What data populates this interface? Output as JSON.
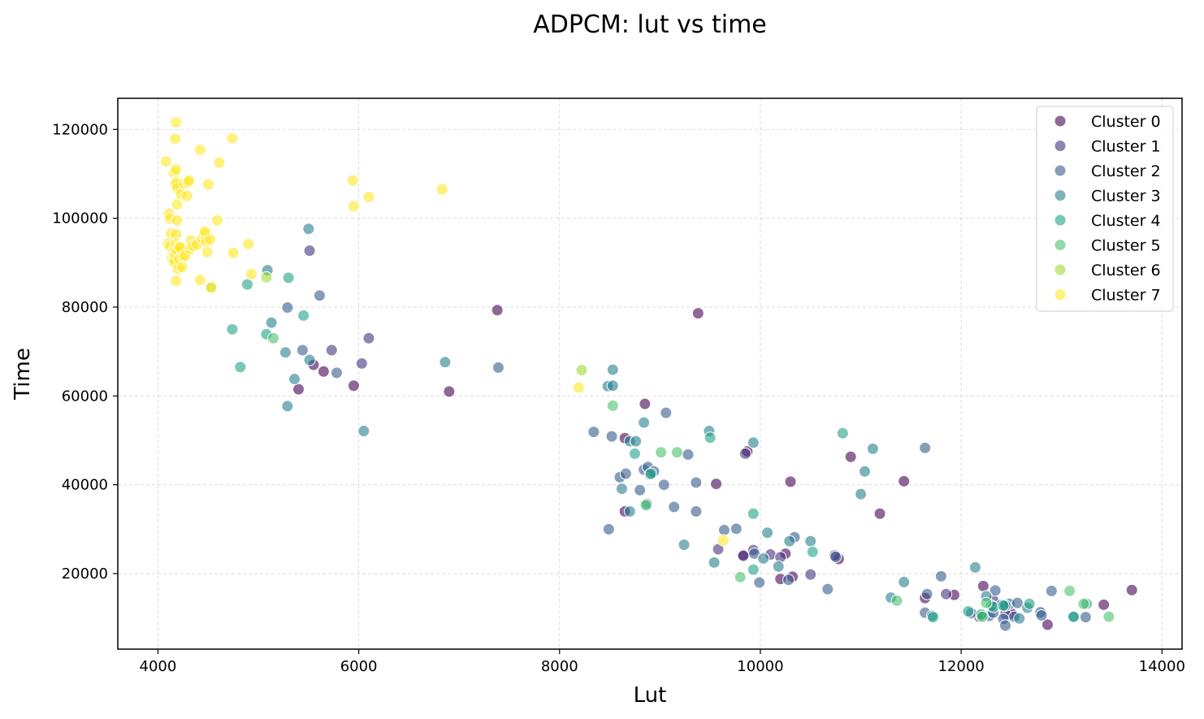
{
  "chart_data": {
    "type": "scatter",
    "title": "ADPCM: lut vs time",
    "xlabel": "Lut",
    "ylabel": "Time",
    "xlim": [
      3600,
      14200
    ],
    "ylim": [
      3000,
      127000
    ],
    "xticks": [
      4000,
      6000,
      8000,
      10000,
      12000,
      14000
    ],
    "yticks": [
      20000,
      40000,
      60000,
      80000,
      100000,
      120000
    ],
    "grid": true,
    "legend_position": "top-right",
    "series": [
      {
        "name": "Cluster 0",
        "color": "#440154",
        "points": [
          [
            5400,
            61500
          ],
          [
            5550,
            67000
          ],
          [
            5650,
            65500
          ],
          [
            5950,
            62300
          ],
          [
            6900,
            61000
          ],
          [
            7380,
            79300
          ],
          [
            9380,
            78600
          ],
          [
            8650,
            50500
          ],
          [
            8850,
            58200
          ],
          [
            8650,
            34000
          ],
          [
            9560,
            40200
          ],
          [
            9870,
            47500
          ],
          [
            9830,
            24200
          ],
          [
            10200,
            18800
          ],
          [
            10250,
            24500
          ],
          [
            10300,
            40700
          ],
          [
            10320,
            19300
          ],
          [
            10900,
            46300
          ],
          [
            10780,
            23300
          ],
          [
            11190,
            33500
          ],
          [
            11430,
            40800
          ],
          [
            11640,
            14500
          ],
          [
            11930,
            15200
          ],
          [
            12220,
            17200
          ],
          [
            12180,
            10300
          ],
          [
            12500,
            11000
          ],
          [
            12860,
            8500
          ],
          [
            13420,
            13000
          ],
          [
            13700,
            16300
          ]
        ]
      },
      {
        "name": "Cluster 1",
        "color": "#46327e",
        "points": [
          [
            5510,
            92700
          ],
          [
            5730,
            70300
          ],
          [
            6030,
            67300
          ],
          [
            6100,
            73000
          ],
          [
            9850,
            47000
          ],
          [
            9830,
            24000
          ],
          [
            9930,
            25300
          ],
          [
            9580,
            25500
          ],
          [
            10100,
            24300
          ],
          [
            10200,
            23700
          ],
          [
            10500,
            19800
          ],
          [
            10740,
            24100
          ],
          [
            11850,
            15400
          ],
          [
            12440,
            10900
          ],
          [
            12320,
            14000
          ]
        ]
      },
      {
        "name": "Cluster 2",
        "color": "#365c8d",
        "points": [
          [
            5290,
            79900
          ],
          [
            5440,
            70300
          ],
          [
            5610,
            82600
          ],
          [
            5780,
            65200
          ],
          [
            7390,
            66400
          ],
          [
            8340,
            51900
          ],
          [
            8520,
            50900
          ],
          [
            8600,
            41700
          ],
          [
            8660,
            42500
          ],
          [
            8800,
            38800
          ],
          [
            8840,
            43400
          ],
          [
            8880,
            44000
          ],
          [
            8940,
            43000
          ],
          [
            9040,
            40000
          ],
          [
            9060,
            56200
          ],
          [
            9140,
            35000
          ],
          [
            9280,
            46800
          ],
          [
            9360,
            40500
          ],
          [
            9360,
            34000
          ],
          [
            9640,
            29800
          ],
          [
            9760,
            30100
          ],
          [
            9940,
            24500
          ],
          [
            9990,
            18000
          ],
          [
            10280,
            18600
          ],
          [
            10340,
            28200
          ],
          [
            10670,
            16500
          ],
          [
            10750,
            23800
          ],
          [
            11640,
            48300
          ],
          [
            11640,
            11200
          ],
          [
            11660,
            15400
          ],
          [
            11800,
            19400
          ],
          [
            12100,
            11100
          ],
          [
            12200,
            10500
          ],
          [
            12280,
            10500
          ],
          [
            12320,
            11200
          ],
          [
            12340,
            16200
          ],
          [
            12400,
            13000
          ],
          [
            12420,
            9800
          ],
          [
            12440,
            8300
          ],
          [
            12480,
            13200
          ],
          [
            12530,
            10300
          ],
          [
            12560,
            13400
          ],
          [
            12790,
            11300
          ],
          [
            12800,
            10600
          ],
          [
            12900,
            16100
          ],
          [
            13240,
            10200
          ],
          [
            8490,
            30000
          ]
        ]
      },
      {
        "name": "Cluster 3",
        "color": "#277f8e",
        "points": [
          [
            5090,
            88300
          ],
          [
            5270,
            69800
          ],
          [
            5290,
            57700
          ],
          [
            5360,
            63800
          ],
          [
            5500,
            97600
          ],
          [
            5510,
            68100
          ],
          [
            6050,
            52100
          ],
          [
            6860,
            67600
          ],
          [
            8480,
            62200
          ],
          [
            8530,
            65900
          ],
          [
            8530,
            62300
          ],
          [
            8700,
            34000
          ],
          [
            8700,
            49800
          ],
          [
            8760,
            49800
          ],
          [
            8840,
            54000
          ],
          [
            8870,
            35700
          ],
          [
            8900,
            42300
          ],
          [
            9240,
            26500
          ],
          [
            9490,
            52100
          ],
          [
            9540,
            22500
          ],
          [
            9930,
            49500
          ],
          [
            10070,
            29200
          ],
          [
            10030,
            23400
          ],
          [
            10180,
            21600
          ],
          [
            10290,
            27300
          ],
          [
            10500,
            27300
          ],
          [
            11000,
            37900
          ],
          [
            11040,
            43000
          ],
          [
            11120,
            48100
          ],
          [
            11430,
            18100
          ],
          [
            11300,
            14600
          ],
          [
            11710,
            10500
          ],
          [
            12140,
            21400
          ],
          [
            12250,
            14900
          ],
          [
            12300,
            12800
          ],
          [
            12440,
            12800
          ],
          [
            12580,
            9900
          ],
          [
            12660,
            12300
          ],
          [
            13120,
            10200
          ],
          [
            8620,
            39100
          ],
          [
            5130,
            76500
          ]
        ]
      },
      {
        "name": "Cluster 4",
        "color": "#1fa187",
        "points": [
          [
            4740,
            75000
          ],
          [
            4820,
            66500
          ],
          [
            4890,
            85100
          ],
          [
            5080,
            73900
          ],
          [
            5300,
            86600
          ],
          [
            5450,
            78100
          ],
          [
            8750,
            47000
          ],
          [
            8910,
            42500
          ],
          [
            9500,
            50600
          ],
          [
            9930,
            33500
          ],
          [
            9930,
            20900
          ],
          [
            10520,
            24900
          ],
          [
            10820,
            51600
          ],
          [
            11720,
            10200
          ],
          [
            12070,
            11500
          ],
          [
            12200,
            10800
          ],
          [
            12320,
            12500
          ],
          [
            12420,
            12800
          ],
          [
            12680,
            13200
          ],
          [
            13120,
            10300
          ],
          [
            13250,
            13200
          ]
        ]
      },
      {
        "name": "Cluster 5",
        "color": "#4ac16d",
        "points": [
          [
            5150,
            73000
          ],
          [
            8530,
            57800
          ],
          [
            8860,
            35400
          ],
          [
            9010,
            47300
          ],
          [
            9170,
            47300
          ],
          [
            9800,
            19200
          ],
          [
            11360,
            13900
          ],
          [
            12210,
            10300
          ],
          [
            12250,
            13400
          ],
          [
            13080,
            16100
          ],
          [
            13220,
            13200
          ],
          [
            13470,
            10300
          ]
        ]
      },
      {
        "name": "Cluster 6",
        "color": "#a0da39",
        "points": [
          [
            4530,
            84500
          ],
          [
            5080,
            86700
          ],
          [
            8220,
            65800
          ]
        ]
      },
      {
        "name": "Cluster 7",
        "color": "#fde725",
        "points": [
          [
            4080,
            112800
          ],
          [
            4100,
            94300
          ],
          [
            4110,
            101000
          ],
          [
            4120,
            99900
          ],
          [
            4120,
            93700
          ],
          [
            4130,
            96600
          ],
          [
            4140,
            91200
          ],
          [
            4150,
            92400
          ],
          [
            4160,
            90800
          ],
          [
            4160,
            90100
          ],
          [
            4170,
            91900
          ],
          [
            4170,
            93200
          ],
          [
            4180,
            121600
          ],
          [
            4170,
            117900
          ],
          [
            4160,
            110200
          ],
          [
            4180,
            111000
          ],
          [
            4180,
            108200
          ],
          [
            4180,
            107800
          ],
          [
            4190,
            106800
          ],
          [
            4190,
            103100
          ],
          [
            4180,
            96400
          ],
          [
            4190,
            99500
          ],
          [
            4180,
            94300
          ],
          [
            4180,
            85900
          ],
          [
            4190,
            92800
          ],
          [
            4200,
            88600
          ],
          [
            4210,
            93600
          ],
          [
            4210,
            90800
          ],
          [
            4220,
            93400
          ],
          [
            4230,
            105400
          ],
          [
            4240,
            89000
          ],
          [
            4250,
            91400
          ],
          [
            4260,
            107800
          ],
          [
            4270,
            91600
          ],
          [
            4290,
            105000
          ],
          [
            4300,
            108100
          ],
          [
            4310,
            108500
          ],
          [
            4320,
            93000
          ],
          [
            4330,
            95000
          ],
          [
            4350,
            93800
          ],
          [
            4390,
            94100
          ],
          [
            4420,
            115400
          ],
          [
            4420,
            86100
          ],
          [
            4440,
            95500
          ],
          [
            4460,
            96500
          ],
          [
            4470,
            97000
          ],
          [
            4480,
            94800
          ],
          [
            4490,
            92400
          ],
          [
            4500,
            107600
          ],
          [
            4520,
            95200
          ],
          [
            4530,
            84400
          ],
          [
            4590,
            99500
          ],
          [
            4610,
            112500
          ],
          [
            4740,
            118000
          ],
          [
            4750,
            92200
          ],
          [
            4900,
            94200
          ],
          [
            4930,
            87400
          ],
          [
            5940,
            108500
          ],
          [
            5950,
            102700
          ],
          [
            6100,
            104800
          ],
          [
            6830,
            106500
          ],
          [
            8190,
            61900
          ],
          [
            9630,
            27500
          ]
        ]
      }
    ]
  }
}
